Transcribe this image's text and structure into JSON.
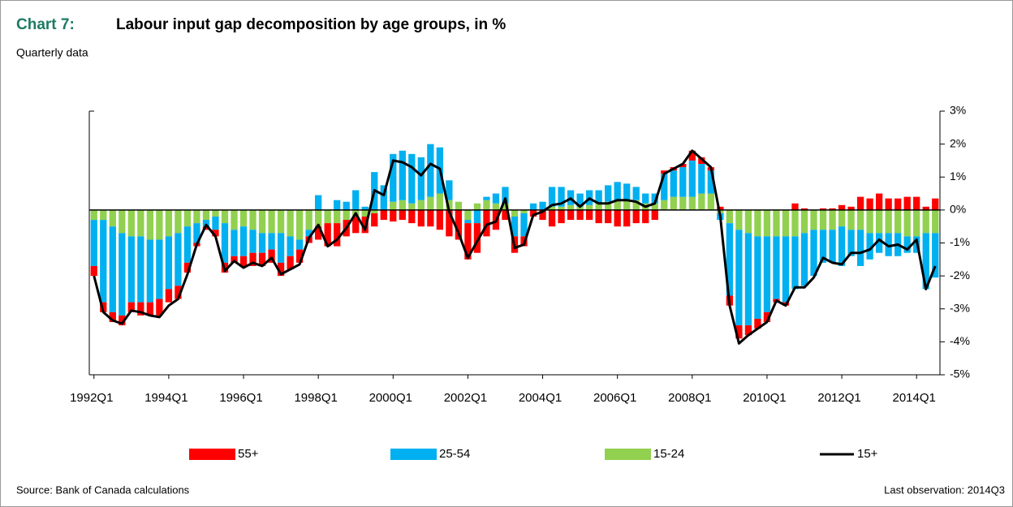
{
  "chart_data": {
    "type": "bar",
    "chart_label": "Chart 7:",
    "title": "Labour input gap decomposition by age groups, in %",
    "subtitle": "Quarterly data",
    "source": "Source: Bank of Canada calculations",
    "note": "Last observation: 2014Q3",
    "categories": [
      "1992Q1",
      null,
      null,
      null,
      null,
      null,
      null,
      null,
      "1994Q1",
      null,
      null,
      null,
      null,
      null,
      null,
      null,
      "1996Q1",
      null,
      null,
      null,
      null,
      null,
      null,
      null,
      "1998Q1",
      null,
      null,
      null,
      null,
      null,
      null,
      null,
      "2000Q1",
      null,
      null,
      null,
      null,
      null,
      null,
      null,
      "2002Q1",
      null,
      null,
      null,
      null,
      null,
      null,
      null,
      "2004Q1",
      null,
      null,
      null,
      null,
      null,
      null,
      null,
      "2006Q1",
      null,
      null,
      null,
      null,
      null,
      null,
      null,
      "2008Q1",
      null,
      null,
      null,
      null,
      null,
      null,
      null,
      "2010Q1",
      null,
      null,
      null,
      null,
      null,
      null,
      null,
      "2012Q1",
      null,
      null,
      null,
      null,
      null,
      null,
      null,
      "2014Q1",
      null,
      null
    ],
    "series": [
      {
        "name": "55+",
        "type": "bar",
        "color": "#ff0000",
        "values": [
          -0.3,
          -0.3,
          -0.3,
          -0.3,
          -0.3,
          -0.4,
          -0.4,
          -0.5,
          -0.4,
          -0.4,
          -0.3,
          -0.1,
          -0.1,
          -0.2,
          -0.3,
          -0.2,
          -0.3,
          -0.4,
          -0.4,
          -0.4,
          -0.4,
          -0.4,
          -0.4,
          -0.2,
          -0.4,
          -0.7,
          -0.7,
          -0.5,
          -0.5,
          -0.5,
          -0.4,
          -0.3,
          -0.35,
          -0.3,
          -0.4,
          -0.5,
          -0.5,
          -0.6,
          -0.8,
          -0.9,
          -1.1,
          -0.9,
          -0.8,
          -0.6,
          -0.3,
          -0.5,
          -0.3,
          -0.2,
          -0.3,
          -0.5,
          -0.4,
          -0.3,
          -0.3,
          -0.3,
          -0.4,
          -0.4,
          -0.5,
          -0.5,
          -0.4,
          -0.4,
          -0.3,
          0.1,
          0.1,
          0.1,
          0.3,
          0.2,
          0.1,
          0.1,
          -0.3,
          -0.4,
          -0.3,
          -0.3,
          -0.3,
          -0.1,
          -0.1,
          0.2,
          0.05,
          0,
          0.05,
          0.05,
          0.15,
          0.1,
          0.4,
          0.35,
          0.5,
          0.35,
          0.35,
          0.4,
          0.4,
          0.1,
          0.35
        ]
      },
      {
        "name": "25-54",
        "type": "bar",
        "color": "#00b0f0",
        "values": [
          -1.4,
          -2.5,
          -2.6,
          -2.5,
          -2.0,
          -2.0,
          -1.9,
          -1.8,
          -1.6,
          -1.6,
          -1.1,
          -0.6,
          -0.2,
          -0.4,
          -1.2,
          -0.8,
          -0.9,
          -0.7,
          -0.6,
          -0.5,
          -0.9,
          -0.6,
          -0.3,
          -0.2,
          0.45,
          0,
          0.3,
          0.25,
          0.6,
          0.1,
          1.15,
          0.75,
          1.45,
          1.5,
          1.5,
          1.3,
          1.6,
          1.4,
          0.6,
          0,
          -0.1,
          -0.4,
          0.1,
          0.3,
          0.5,
          -0.6,
          -0.7,
          0.2,
          0.25,
          0.6,
          0.6,
          0.45,
          0.4,
          0.45,
          0.4,
          0.5,
          0.55,
          0.5,
          0.4,
          0.3,
          0.3,
          0.8,
          0.8,
          0.9,
          1.1,
          0.9,
          0.7,
          -0.2,
          -2.2,
          -2.9,
          -2.8,
          -2.5,
          -2.3,
          -1.9,
          -2.0,
          -1.6,
          -1.6,
          -1.4,
          -1.0,
          -1.0,
          -1.2,
          -0.8,
          -1.1,
          -0.8,
          -0.6,
          -0.7,
          -0.7,
          -0.5,
          -0.5,
          -1.7,
          -1.35
        ]
      },
      {
        "name": "15-24",
        "type": "bar",
        "color": "#92d050",
        "values": [
          -0.3,
          -0.3,
          -0.5,
          -0.7,
          -0.8,
          -0.8,
          -0.9,
          -0.9,
          -0.8,
          -0.7,
          -0.5,
          -0.4,
          -0.3,
          -0.2,
          -0.4,
          -0.6,
          -0.5,
          -0.6,
          -0.7,
          -0.7,
          -0.7,
          -0.8,
          -0.9,
          -0.6,
          -0.5,
          -0.4,
          -0.4,
          -0.3,
          -0.2,
          -0.2,
          -0.1,
          0,
          0.25,
          0.3,
          0.2,
          0.3,
          0.4,
          0.5,
          0.3,
          0.25,
          -0.3,
          0.2,
          0.3,
          0.2,
          0.2,
          -0.2,
          -0.1,
          0,
          0,
          0.1,
          0.1,
          0.15,
          0.1,
          0.15,
          0.2,
          0.25,
          0.3,
          0.3,
          0.3,
          0.2,
          0.2,
          0.3,
          0.4,
          0.4,
          0.4,
          0.5,
          0.5,
          -0.1,
          -0.4,
          -0.6,
          -0.7,
          -0.8,
          -0.8,
          -0.8,
          -0.8,
          -0.8,
          -0.7,
          -0.6,
          -0.6,
          -0.6,
          -0.5,
          -0.6,
          -0.6,
          -0.7,
          -0.7,
          -0.7,
          -0.7,
          -0.8,
          -0.8,
          -0.7,
          -0.7
        ]
      },
      {
        "name": "15+",
        "type": "line",
        "color": "#000000",
        "values": [
          -2.0,
          -3.1,
          -3.35,
          -3.45,
          -3.05,
          -3.1,
          -3.2,
          -3.25,
          -2.9,
          -2.7,
          -1.95,
          -1.05,
          -0.45,
          -0.8,
          -1.85,
          -1.55,
          -1.75,
          -1.6,
          -1.7,
          -1.45,
          -1.95,
          -1.8,
          -1.65,
          -0.85,
          -0.45,
          -1.1,
          -0.9,
          -0.55,
          -0.1,
          -0.6,
          0.6,
          0.45,
          1.5,
          1.45,
          1.3,
          1.05,
          1.4,
          1.25,
          -0.05,
          -0.7,
          -1.45,
          -0.95,
          -0.45,
          -0.35,
          0.35,
          -1.15,
          -1.05,
          -0.15,
          -0.05,
          0.15,
          0.2,
          0.35,
          0.1,
          0.35,
          0.2,
          0.2,
          0.3,
          0.3,
          0.25,
          0.1,
          0.2,
          1.1,
          1.25,
          1.4,
          1.8,
          1.55,
          1.3,
          -0.2,
          -2.9,
          -4.05,
          -3.8,
          -3.6,
          -3.4,
          -2.75,
          -2.9,
          -2.35,
          -2.35,
          -2.05,
          -1.45,
          -1.6,
          -1.65,
          -1.3,
          -1.3,
          -1.2,
          -0.9,
          -1.1,
          -1.05,
          -1.2,
          -0.9,
          -2.4,
          -1.7
        ]
      }
    ],
    "ylim": [
      -5,
      3
    ],
    "yticks": [
      {
        "value": -5,
        "label": "-5%"
      },
      {
        "value": -4,
        "label": "-4%"
      },
      {
        "value": -3,
        "label": "-3%"
      },
      {
        "value": -2,
        "label": "-2%"
      },
      {
        "value": -1,
        "label": "-1%"
      },
      {
        "value": 0,
        "label": "0%"
      },
      {
        "value": 1,
        "label": "1%"
      },
      {
        "value": 2,
        "label": "2%"
      },
      {
        "value": 3,
        "label": "3%"
      }
    ],
    "legend": "bottom"
  }
}
